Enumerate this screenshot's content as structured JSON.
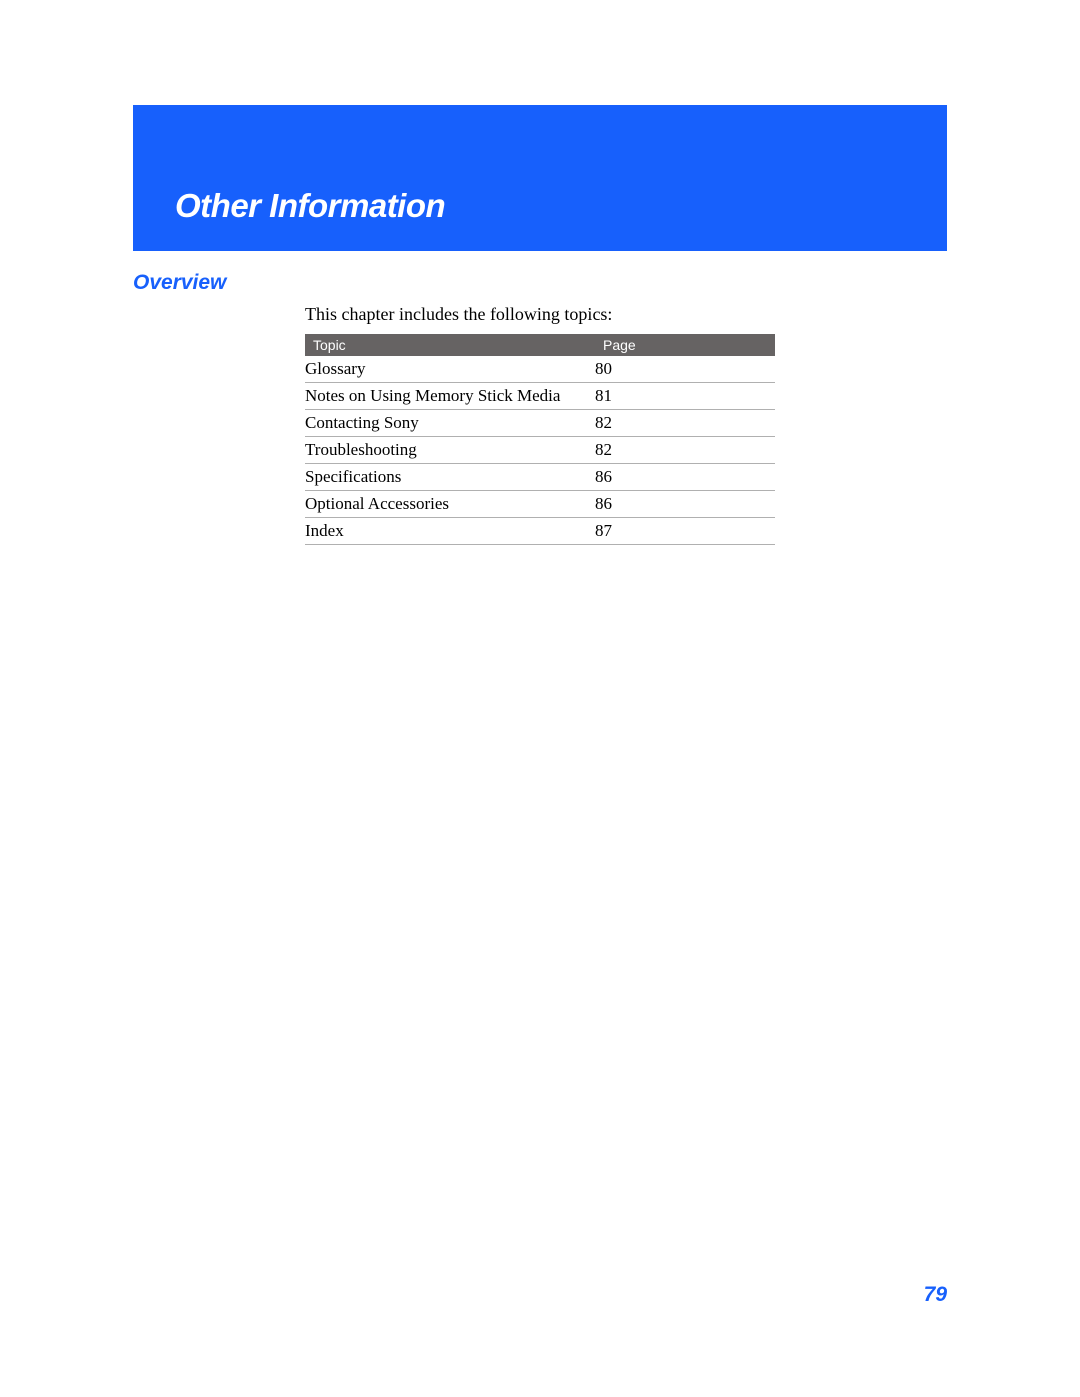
{
  "header": {
    "chapter_title": "Other Information",
    "banner_color": "#1760fc",
    "title_color": "#ffffff"
  },
  "section": {
    "heading": "Overview",
    "heading_color": "#1760fc",
    "intro": "This chapter includes the following topics:"
  },
  "table": {
    "header_bg": "#666363",
    "header_text_color": "#ffffff",
    "row_border_color": "#b0b0b0",
    "columns": [
      "Topic",
      "Page"
    ],
    "rows": [
      {
        "topic": "Glossary",
        "page": "80"
      },
      {
        "topic": "Notes on Using Memory Stick Media",
        "page": "81"
      },
      {
        "topic": "Contacting Sony",
        "page": "82"
      },
      {
        "topic": "Troubleshooting",
        "page": "82"
      },
      {
        "topic": "Specifications",
        "page": "86"
      },
      {
        "topic": "Optional Accessories",
        "page": "86"
      },
      {
        "topic": "Index",
        "page": "87"
      }
    ]
  },
  "footer": {
    "page_number": "79",
    "page_number_color": "#1760fc"
  }
}
